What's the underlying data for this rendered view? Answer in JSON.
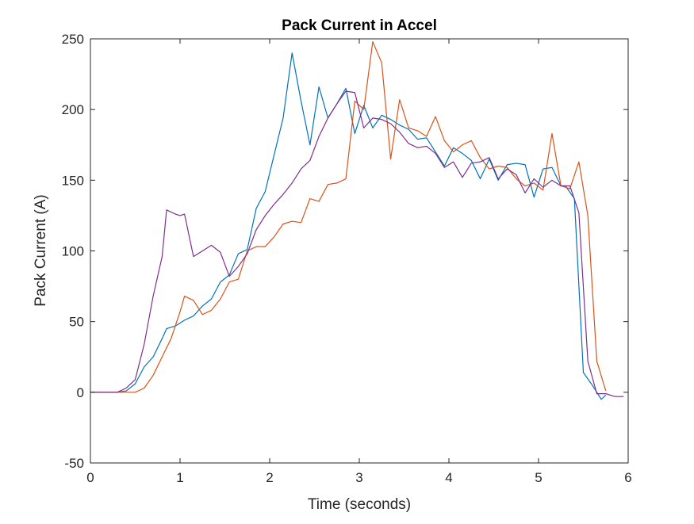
{
  "chart_data": {
    "type": "line",
    "title": "Pack Current in Accel",
    "xlabel": "Time (seconds)",
    "ylabel": "Pack Current (A)",
    "xlim": [
      0,
      6
    ],
    "ylim": [
      -50,
      250
    ],
    "xticks": [
      0,
      1,
      2,
      3,
      4,
      5,
      6
    ],
    "yticks": [
      -50,
      0,
      50,
      100,
      150,
      200,
      250
    ],
    "xtick_labels": [
      "0",
      "1",
      "2",
      "3",
      "4",
      "5",
      "6"
    ],
    "ytick_labels": [
      "-50",
      "0",
      "50",
      "100",
      "150",
      "200",
      "250"
    ],
    "grid": false,
    "legend": "none",
    "series": [
      {
        "color": "#0072BD",
        "x": [
          0,
          0.1,
          0.2,
          0.3,
          0.4,
          0.5,
          0.6,
          0.7,
          0.8,
          0.85,
          0.95,
          1.0,
          1.05,
          1.15,
          1.25,
          1.35,
          1.45,
          1.55,
          1.65,
          1.75,
          1.85,
          1.95,
          2.05,
          2.15,
          2.25,
          2.35,
          2.45,
          2.55,
          2.65,
          2.75,
          2.85,
          2.95,
          3.05,
          3.15,
          3.25,
          3.35,
          3.45,
          3.55,
          3.65,
          3.75,
          3.85,
          3.95,
          4.05,
          4.15,
          4.25,
          4.35,
          4.45,
          4.55,
          4.65,
          4.75,
          4.85,
          4.95,
          5.05,
          5.15,
          5.25,
          5.3,
          5.4,
          5.5,
          5.6,
          5.7,
          5.75
        ],
        "y": [
          0,
          0,
          0,
          0,
          1,
          6,
          18,
          25,
          38,
          45,
          47,
          49,
          51,
          54,
          61,
          66,
          78,
          83,
          98,
          101,
          130,
          142,
          168,
          194,
          240,
          206,
          175,
          216,
          194,
          204,
          215,
          183,
          203,
          187,
          196,
          193,
          189,
          186,
          179,
          180,
          170,
          160,
          173,
          169,
          164,
          151,
          165,
          150,
          161,
          162,
          161,
          138,
          158,
          159,
          146,
          146,
          137,
          14,
          5,
          -5,
          -2
        ]
      },
      {
        "color": "#D95319",
        "x": [
          0,
          0.1,
          0.2,
          0.3,
          0.4,
          0.5,
          0.6,
          0.7,
          0.8,
          0.9,
          1.0,
          1.05,
          1.15,
          1.25,
          1.35,
          1.45,
          1.55,
          1.65,
          1.75,
          1.85,
          1.95,
          2.05,
          2.15,
          2.25,
          2.35,
          2.45,
          2.55,
          2.65,
          2.75,
          2.85,
          2.95,
          3.05,
          3.15,
          3.25,
          3.35,
          3.45,
          3.55,
          3.65,
          3.75,
          3.85,
          3.95,
          4.05,
          4.15,
          4.25,
          4.35,
          4.45,
          4.55,
          4.65,
          4.75,
          4.85,
          4.95,
          5.05,
          5.15,
          5.25,
          5.35,
          5.45,
          5.55,
          5.65,
          5.75
        ],
        "y": [
          0,
          0,
          0,
          0,
          0,
          0,
          3,
          12,
          25,
          38,
          57,
          68,
          65,
          55,
          58,
          66,
          78,
          80,
          100,
          103,
          103,
          110,
          119,
          121,
          120,
          137,
          135,
          147,
          148,
          151,
          206,
          200,
          248,
          233,
          165,
          207,
          187,
          185,
          181,
          195,
          178,
          170,
          175,
          178,
          166,
          158,
          160,
          159,
          151,
          146,
          148,
          143,
          183,
          146,
          144,
          163,
          125,
          22,
          1
        ]
      },
      {
        "color": "#7E2F8E",
        "x": [
          0,
          0.1,
          0.2,
          0.3,
          0.4,
          0.5,
          0.6,
          0.7,
          0.8,
          0.85,
          0.95,
          1.0,
          1.05,
          1.15,
          1.25,
          1.35,
          1.45,
          1.55,
          1.65,
          1.75,
          1.85,
          1.95,
          2.05,
          2.15,
          2.25,
          2.35,
          2.45,
          2.55,
          2.65,
          2.75,
          2.85,
          2.95,
          3.05,
          3.15,
          3.25,
          3.35,
          3.45,
          3.55,
          3.65,
          3.75,
          3.85,
          3.95,
          4.05,
          4.15,
          4.25,
          4.35,
          4.45,
          4.55,
          4.65,
          4.75,
          4.85,
          4.95,
          5.05,
          5.15,
          5.25,
          5.35,
          5.45,
          5.55,
          5.65,
          5.75,
          5.85,
          5.95
        ],
        "y": [
          0,
          0,
          0,
          0,
          3,
          9,
          34,
          68,
          96,
          129,
          126,
          125,
          126,
          96,
          100,
          104,
          99,
          82,
          89,
          98,
          115,
          125,
          133,
          140,
          148,
          158,
          164,
          181,
          194,
          204,
          213,
          212,
          187,
          194,
          193,
          190,
          184,
          176,
          173,
          174,
          169,
          159,
          163,
          152,
          162,
          163,
          166,
          151,
          158,
          154,
          141,
          151,
          145,
          150,
          146,
          146,
          127,
          22,
          -1,
          -1,
          -3,
          -3
        ]
      }
    ]
  }
}
